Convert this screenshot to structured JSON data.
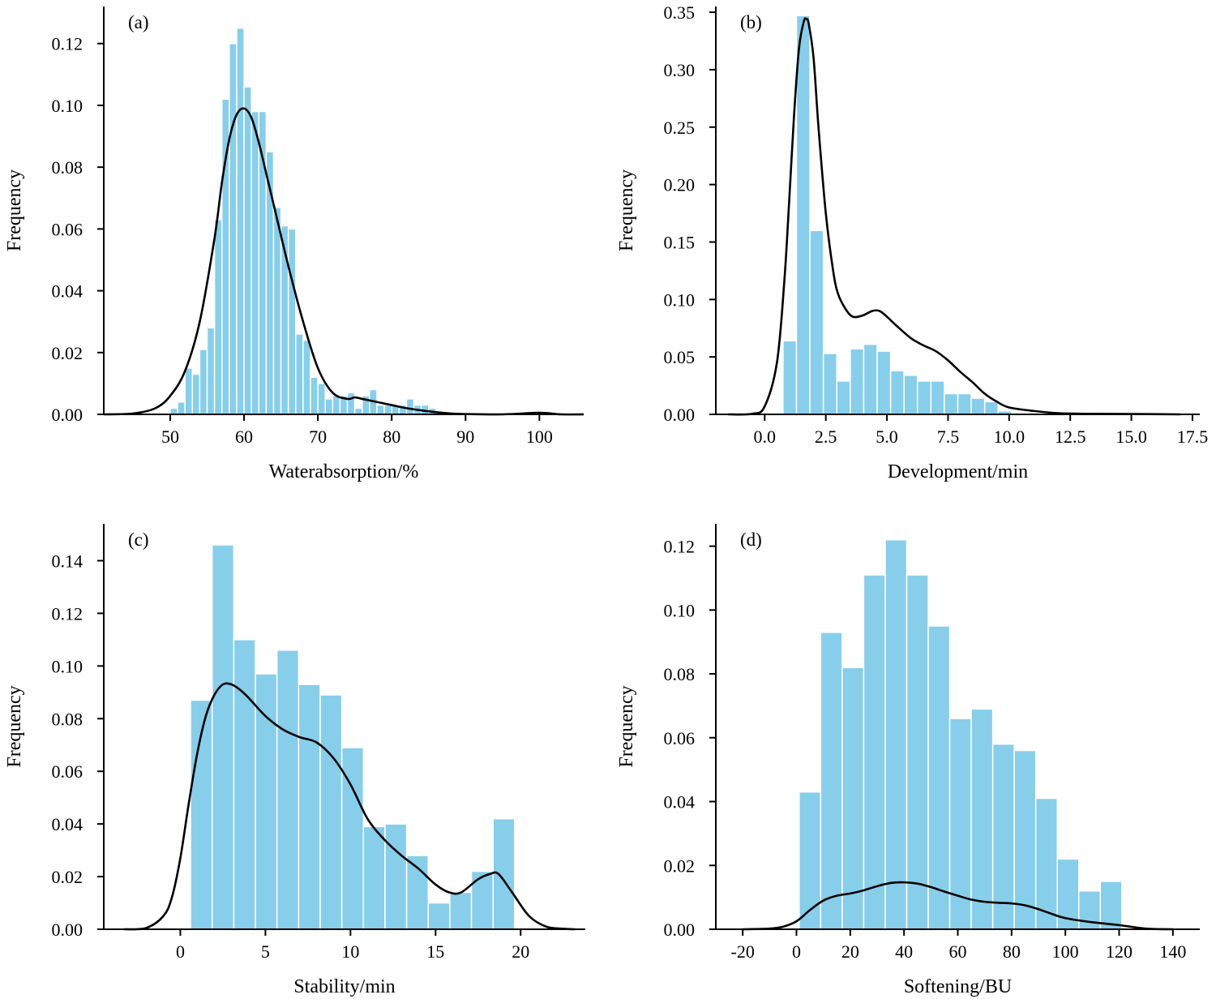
{
  "colors": {
    "bar": "#87CEEB",
    "curve": "#000000",
    "axis": "#000000"
  },
  "chart_data": [
    {
      "type": "bar",
      "panel_label": "(a)",
      "xlabel": "Waterabsorption/%",
      "ylabel": "Frequency",
      "xlim": [
        41,
        106
      ],
      "ylim": [
        0,
        0.132
      ],
      "xticks": [
        50,
        60,
        70,
        80,
        90,
        100
      ],
      "xtick_labels": [
        "50",
        "60",
        "70",
        "80",
        "90",
        "100"
      ],
      "yticks": [
        0,
        0.02,
        0.04,
        0.06,
        0.08,
        0.1,
        0.12
      ],
      "ytick_labels": [
        "0.00",
        "0.02",
        "0.04",
        "0.06",
        "0.08",
        "0.10",
        "0.12"
      ],
      "bin_start": 50,
      "bin_width": 1,
      "values": [
        0.002,
        0.004,
        0.015,
        0.013,
        0.021,
        0.028,
        0.063,
        0.102,
        0.12,
        0.125,
        0.106,
        0.098,
        0.098,
        0.085,
        0.067,
        0.061,
        0.06,
        0.026,
        0.024,
        0.012,
        0.01,
        0.005,
        0.006,
        0.006,
        0.007,
        0.002,
        0.006,
        0.008,
        0.003,
        0.003,
        0.003,
        0.003,
        0.005,
        0.003,
        0.003,
        0.002
      ],
      "density": {
        "x": [
          41,
          45,
          48,
          50,
          52,
          54,
          56,
          57,
          58,
          59,
          60,
          61,
          62,
          63,
          64,
          66,
          68,
          70,
          72,
          74,
          75,
          76,
          78,
          80,
          82,
          84,
          86,
          88,
          90,
          95,
          100,
          103,
          106
        ],
        "y": [
          0,
          0.0003,
          0.002,
          0.006,
          0.014,
          0.03,
          0.057,
          0.075,
          0.089,
          0.097,
          0.099,
          0.096,
          0.088,
          0.078,
          0.068,
          0.048,
          0.03,
          0.015,
          0.007,
          0.005,
          0.0055,
          0.005,
          0.004,
          0.003,
          0.002,
          0.0013,
          0.0007,
          0.0003,
          0.0001,
          0,
          0.0005,
          0,
          0
        ]
      }
    },
    {
      "type": "bar",
      "panel_label": "(b)",
      "xlabel": "Development/min",
      "ylabel": "Frequency",
      "xlim": [
        -2.0,
        17.8
      ],
      "ylim": [
        0,
        0.355
      ],
      "xticks": [
        0,
        2.5,
        5,
        7.5,
        10,
        12.5,
        15,
        17.5
      ],
      "xtick_labels": [
        "0.0",
        "2.5",
        "5.0",
        "7.5",
        "10.0",
        "12.5",
        "15.0",
        "17.5"
      ],
      "yticks": [
        0,
        0.05,
        0.1,
        0.15,
        0.2,
        0.25,
        0.3,
        0.35
      ],
      "ytick_labels": [
        "0.00",
        "0.05",
        "0.10",
        "0.15",
        "0.20",
        "0.25",
        "0.30",
        "0.35"
      ],
      "bin_start": 0.75,
      "bin_width": 0.55,
      "values": [
        0.064,
        0.347,
        0.16,
        0.053,
        0.029,
        0.057,
        0.061,
        0.055,
        0.038,
        0.034,
        0.029,
        0.029,
        0.018,
        0.018,
        0.014,
        0.011,
        0.003
      ],
      "density": {
        "x": [
          -1.5,
          -0.5,
          0,
          0.5,
          0.8,
          1.0,
          1.2,
          1.4,
          1.6,
          1.7,
          1.8,
          2.0,
          2.2,
          2.5,
          2.8,
          3.0,
          3.3,
          3.6,
          4.0,
          4.4,
          4.7,
          5.0,
          5.4,
          6.0,
          6.5,
          7.0,
          7.5,
          8.0,
          8.5,
          9.0,
          9.5,
          10.0,
          11.0,
          12.0,
          13.0,
          15.0,
          17.0
        ],
        "y": [
          0,
          0.0005,
          0.007,
          0.045,
          0.115,
          0.185,
          0.26,
          0.318,
          0.342,
          0.344,
          0.34,
          0.31,
          0.25,
          0.175,
          0.125,
          0.105,
          0.092,
          0.085,
          0.086,
          0.09,
          0.09,
          0.085,
          0.077,
          0.066,
          0.06,
          0.055,
          0.047,
          0.037,
          0.028,
          0.018,
          0.011,
          0.006,
          0.003,
          0.001,
          0.0005,
          0.0003,
          0
        ]
      }
    },
    {
      "type": "bar",
      "panel_label": "(c)",
      "xlabel": "Stability/min",
      "ylabel": "Frequency",
      "xlim": [
        -4.5,
        23.8
      ],
      "ylim": [
        0,
        0.154
      ],
      "xticks": [
        0,
        5,
        10,
        15,
        20
      ],
      "xtick_labels": [
        "0",
        "5",
        "10",
        "15",
        "20"
      ],
      "yticks": [
        0,
        0.02,
        0.04,
        0.06,
        0.08,
        0.1,
        0.12,
        0.14
      ],
      "ytick_labels": [
        "0.00",
        "0.02",
        "0.04",
        "0.06",
        "0.08",
        "0.10",
        "0.12",
        "0.14"
      ],
      "bin_start": 0.6,
      "bin_width": 1.27,
      "values": [
        0.087,
        0.146,
        0.11,
        0.097,
        0.106,
        0.093,
        0.089,
        0.069,
        0.039,
        0.04,
        0.028,
        0.01,
        0.014,
        0.022,
        0.042
      ],
      "density": {
        "x": [
          -3.3,
          -2,
          -1,
          -0.5,
          0,
          0.5,
          1,
          1.5,
          2,
          2.5,
          3,
          3.5,
          4,
          5,
          6,
          7,
          8,
          9,
          10,
          11,
          12,
          13,
          14,
          15,
          15.8,
          16.5,
          17.5,
          18.2,
          18.7,
          19.5,
          20.5,
          21.5,
          22.5,
          23.2
        ],
        "y": [
          0,
          0.0005,
          0.005,
          0.012,
          0.027,
          0.048,
          0.067,
          0.081,
          0.089,
          0.093,
          0.093,
          0.091,
          0.088,
          0.081,
          0.076,
          0.073,
          0.071,
          0.065,
          0.055,
          0.042,
          0.034,
          0.028,
          0.023,
          0.017,
          0.014,
          0.014,
          0.019,
          0.021,
          0.021,
          0.014,
          0.005,
          0.001,
          0.0002,
          0
        ]
      }
    },
    {
      "type": "bar",
      "panel_label": "(d)",
      "xlabel": "Softening/BU",
      "ylabel": "Frequency",
      "xlim": [
        -30,
        150
      ],
      "ylim": [
        0,
        0.127
      ],
      "xticks": [
        -20,
        0,
        20,
        40,
        60,
        80,
        100,
        120,
        140
      ],
      "xtick_labels": [
        "-20",
        "0",
        "20",
        "40",
        "60",
        "80",
        "100",
        "120",
        "140"
      ],
      "yticks": [
        0,
        0.02,
        0.04,
        0.06,
        0.08,
        0.1,
        0.12
      ],
      "ytick_labels": [
        "0.00",
        "0.02",
        "0.04",
        "0.06",
        "0.08",
        "0.10",
        "0.12"
      ],
      "bin_start": 1,
      "bin_width": 8,
      "values": [
        0.043,
        0.093,
        0.082,
        0.111,
        0.122,
        0.111,
        0.095,
        0.066,
        0.069,
        0.058,
        0.056,
        0.041,
        0.022,
        0.012,
        0.015
      ],
      "density": {
        "x": [
          -20,
          -10,
          -5,
          0,
          5,
          10,
          15,
          20,
          25,
          30,
          35,
          40,
          45,
          50,
          55,
          60,
          65,
          70,
          75,
          80,
          85,
          90,
          95,
          100,
          110,
          120,
          130,
          140
        ],
        "y": [
          0,
          0.0002,
          0.0008,
          0.0025,
          0.006,
          0.009,
          0.0105,
          0.0112,
          0.0122,
          0.0135,
          0.0145,
          0.0147,
          0.0143,
          0.0132,
          0.0118,
          0.0105,
          0.0093,
          0.0086,
          0.0083,
          0.0081,
          0.0075,
          0.0063,
          0.0048,
          0.0035,
          0.0022,
          0.0013,
          0.0002,
          0
        ]
      }
    }
  ]
}
